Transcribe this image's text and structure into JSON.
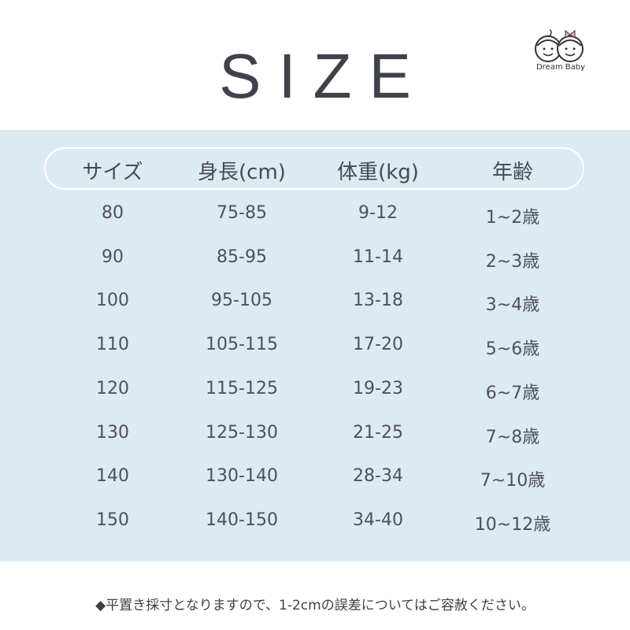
{
  "title": "SIZE",
  "brand": {
    "name": "Dream Baby"
  },
  "table": {
    "headers": [
      "サイズ",
      "身長(cm)",
      "体重(kg)",
      "年齢"
    ],
    "rows": [
      [
        "80",
        "75-85",
        "9-12",
        "1~2歳"
      ],
      [
        "90",
        "85-95",
        "11-14",
        "2~3歳"
      ],
      [
        "100",
        "95-105",
        "13-18",
        "3~4歳"
      ],
      [
        "110",
        "105-115",
        "17-20",
        "5~6歳"
      ],
      [
        "120",
        "115-125",
        "19-23",
        "6~7歳"
      ],
      [
        "130",
        "125-130",
        "21-25",
        "7~8歳"
      ],
      [
        "140",
        "130-140",
        "28-34",
        "7~10歳"
      ],
      [
        "150",
        "140-150",
        "34-40",
        "10~12歳"
      ]
    ]
  },
  "note": "◆平置き採寸となりますので、1-2cmの誤差についてはご容赦ください。",
  "colors": {
    "panel": "#dcebf1",
    "text": "#4a4d52",
    "bow": "#e9a9cf"
  }
}
